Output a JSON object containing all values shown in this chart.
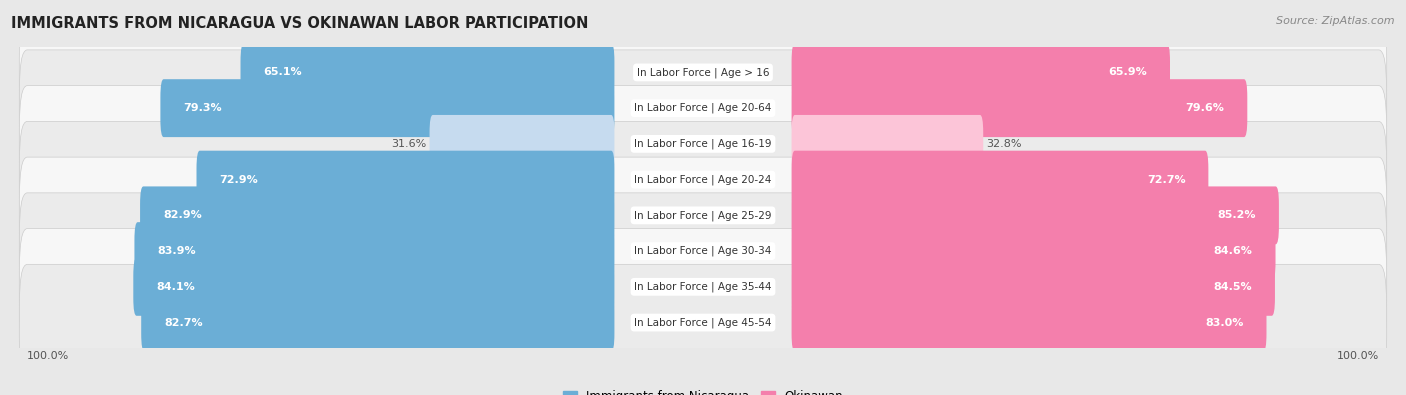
{
  "title": "IMMIGRANTS FROM NICARAGUA VS OKINAWAN LABOR PARTICIPATION",
  "source": "Source: ZipAtlas.com",
  "categories": [
    "In Labor Force | Age > 16",
    "In Labor Force | Age 20-64",
    "In Labor Force | Age 16-19",
    "In Labor Force | Age 20-24",
    "In Labor Force | Age 25-29",
    "In Labor Force | Age 30-34",
    "In Labor Force | Age 35-44",
    "In Labor Force | Age 45-54"
  ],
  "nicaragua_values": [
    65.1,
    79.3,
    31.6,
    72.9,
    82.9,
    83.9,
    84.1,
    82.7
  ],
  "okinawan_values": [
    65.9,
    79.6,
    32.8,
    72.7,
    85.2,
    84.6,
    84.5,
    83.0
  ],
  "nicaragua_color": "#6baed6",
  "okinawan_color": "#f47fac",
  "nicaragua_light_color": "#c6dbef",
  "okinawan_light_color": "#fcc5d8",
  "background_color": "#e8e8e8",
  "row_bg_color": "#f7f7f7",
  "row_alt_bg_color": "#ebebeb",
  "max_value": 100.0,
  "legend_nicaragua": "Immigrants from Nicaragua",
  "legend_okinawan": "Okinawan",
  "title_fontsize": 10.5,
  "source_fontsize": 8,
  "bar_label_fontsize": 8,
  "category_fontsize": 7.5,
  "legend_fontsize": 8.5,
  "axis_label_fontsize": 8
}
